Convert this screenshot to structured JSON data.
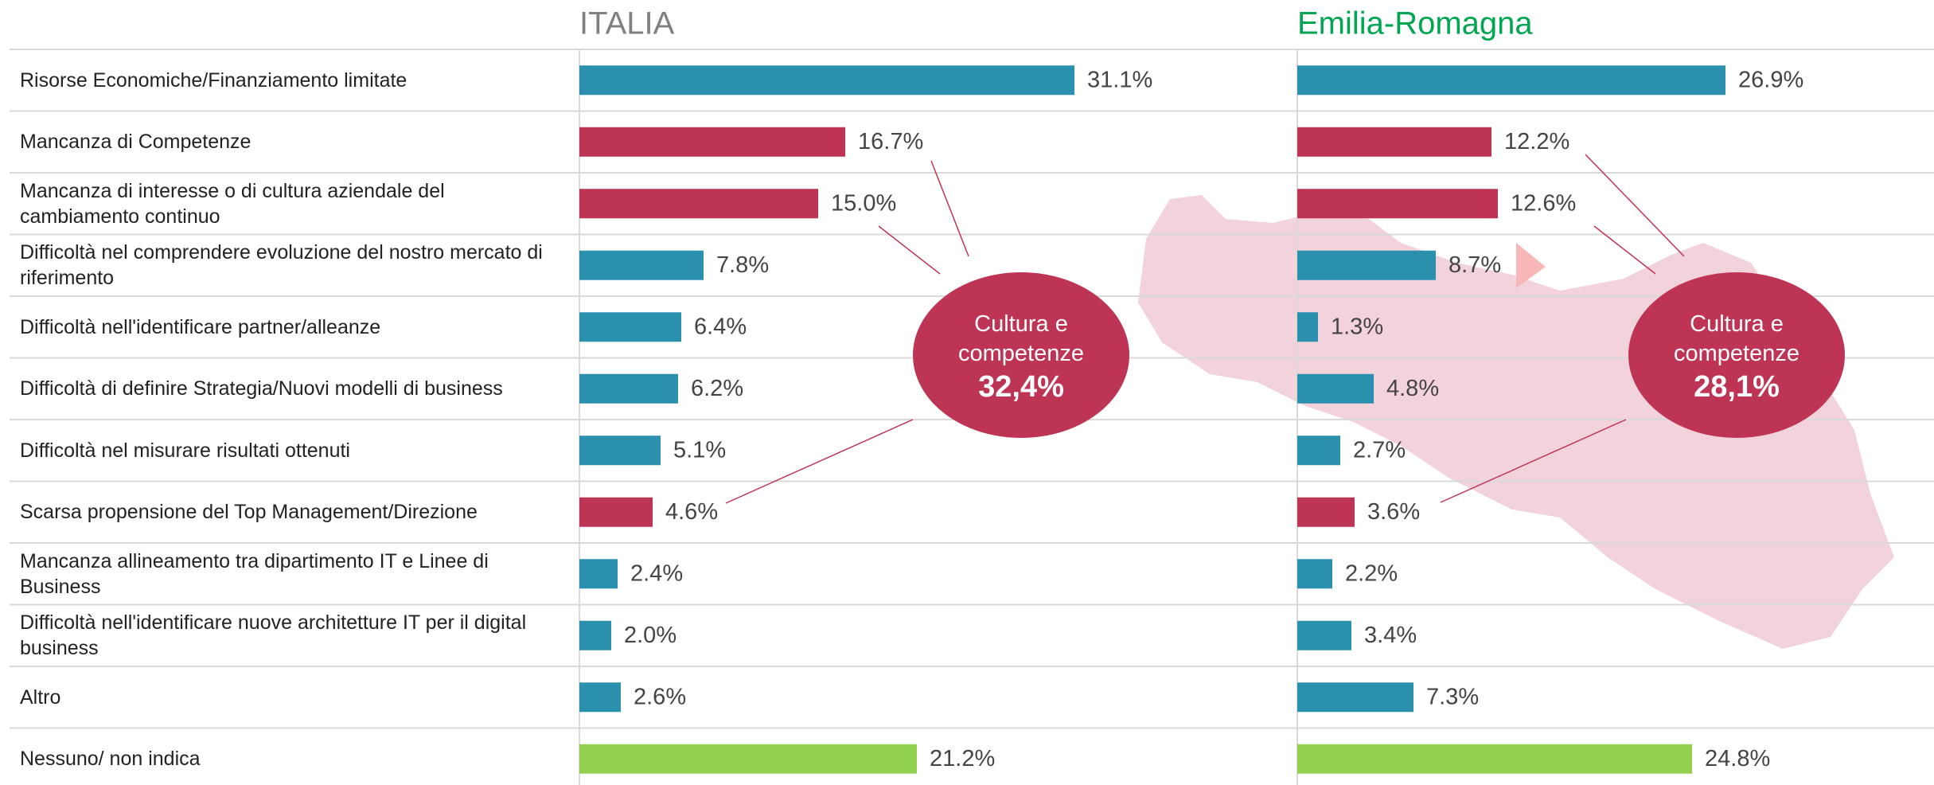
{
  "chart_data": {
    "type": "bar",
    "categories": [
      "Risorse Economiche/Finanziamento limitate",
      "Mancanza di Competenze",
      "Mancanza di interesse o di cultura aziendale del cambiamento continuo",
      "Difficoltà nel comprendere evoluzione del nostro mercato di riferimento",
      "Difficoltà nell'identificare partner/alleanze",
      "Difficoltà di definire Strategia/Nuovi modelli di business",
      "Difficoltà nel misurare risultati ottenuti",
      "Scarsa propensione del Top Management/Direzione",
      "Mancanza allineamento tra dipartimento IT e Linee di Business",
      "Difficoltà nell'identificare nuove architetture IT per il digital business",
      "Altro",
      "Nessuno/ non indica"
    ],
    "colors": [
      "#2b8fae",
      "#be3455",
      "#be3455",
      "#2b8fae",
      "#2b8fae",
      "#2b8fae",
      "#2b8fae",
      "#be3455",
      "#2b8fae",
      "#2b8fae",
      "#2b8fae",
      "#92d050"
    ],
    "series": [
      {
        "name": "ITALIA",
        "color": "#808080",
        "values": [
          31.1,
          16.7,
          15.0,
          7.8,
          6.4,
          6.2,
          5.1,
          4.6,
          2.4,
          2.0,
          2.6,
          21.2
        ],
        "value_labels": [
          "31.1%",
          "16.7%",
          "15.0%",
          "7.8%",
          "6.4%",
          "6.2%",
          "5.1%",
          "4.6%",
          "2.4%",
          "2.0%",
          "2.6%",
          "21.2%"
        ],
        "annotation": {
          "text": "Cultura e competenze",
          "label": "32,4%"
        }
      },
      {
        "name": "Emilia-Romagna",
        "color": "#00a651",
        "values": [
          26.9,
          12.2,
          12.6,
          8.7,
          1.3,
          4.8,
          2.7,
          3.6,
          2.2,
          3.4,
          7.3,
          24.8
        ],
        "value_labels": [
          "26.9%",
          "12.2%",
          "12.6%",
          "8.7%",
          "1.3%",
          "4.8%",
          "2.7%",
          "3.6%",
          "2.2%",
          "3.4%",
          "7.3%",
          "24.8%"
        ],
        "annotation": {
          "text": "Cultura e competenze",
          "label": "28,1%"
        }
      }
    ]
  }
}
